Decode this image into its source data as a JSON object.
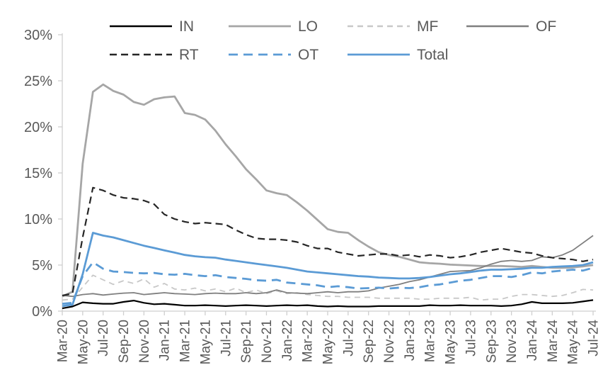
{
  "chart_data": {
    "type": "line",
    "title": "",
    "xlabel": "",
    "ylabel": "",
    "grid": false,
    "legend_position": "top",
    "ylim": [
      0,
      30
    ],
    "y_tick_labels": [
      "0%",
      "5%",
      "10%",
      "15%",
      "20%",
      "25%",
      "30%"
    ],
    "x_tick_labels": [
      "Mar-20",
      "May-20",
      "Jul-20",
      "Sep-20",
      "Nov-20",
      "Jan-21",
      "Mar-21",
      "May-21",
      "Jul-21",
      "Sep-21",
      "Nov-21",
      "Jan-22",
      "Mar-22",
      "May-22",
      "Jul-22",
      "Sep-22",
      "Nov-22",
      "Jan-23",
      "Mar-23",
      "May-23",
      "Jul-23",
      "Sep-23",
      "Nov-23",
      "Jan-24",
      "Mar-24",
      "May-24",
      "Jul-24"
    ],
    "x_frequency": "monthly, labeled every 2 months",
    "points_count": 53,
    "legend_rows": [
      [
        "IN",
        "LO",
        "MF",
        "OF"
      ],
      [
        "RT",
        "OT",
        "Total"
      ]
    ],
    "series": [
      {
        "name": "IN",
        "color": "#000000",
        "style": "solid",
        "width": 2.2,
        "dash": "",
        "values": [
          0.3,
          0.5,
          0.95,
          0.85,
          0.8,
          0.8,
          1.0,
          1.15,
          0.9,
          0.75,
          0.8,
          0.7,
          0.6,
          0.6,
          0.65,
          0.6,
          0.55,
          0.6,
          0.65,
          0.6,
          0.55,
          0.6,
          0.65,
          0.6,
          0.65,
          0.55,
          0.5,
          0.55,
          0.5,
          0.5,
          0.5,
          0.55,
          0.55,
          0.55,
          0.55,
          0.55,
          0.65,
          0.6,
          0.6,
          0.65,
          0.6,
          0.6,
          0.6,
          0.55,
          0.6,
          0.75,
          1.0,
          0.85,
          0.85,
          0.85,
          0.9,
          1.05,
          1.2
        ]
      },
      {
        "name": "LO",
        "color": "#a6a6a6",
        "style": "solid",
        "width": 2.8,
        "dash": "",
        "values": [
          1.6,
          2.1,
          16.0,
          23.8,
          24.6,
          23.9,
          23.5,
          22.7,
          22.4,
          23.0,
          23.2,
          23.3,
          21.5,
          21.3,
          20.8,
          19.6,
          18.1,
          16.8,
          15.4,
          14.3,
          13.1,
          12.8,
          12.6,
          11.8,
          10.9,
          9.9,
          8.9,
          8.6,
          8.5,
          7.7,
          7.0,
          6.4,
          6.1,
          5.9,
          5.6,
          5.3,
          5.2,
          5.15,
          5.05,
          5.0,
          4.95,
          4.9,
          4.9,
          4.9,
          4.85,
          4.8,
          4.9,
          4.8,
          4.7,
          4.7,
          4.75,
          4.85,
          5.0
        ]
      },
      {
        "name": "MF",
        "color": "#c8c8c8",
        "style": "dashed",
        "width": 1.8,
        "dash": "8 6",
        "values": [
          1.2,
          1.3,
          2.6,
          3.9,
          3.4,
          2.9,
          3.3,
          3.0,
          3.5,
          2.6,
          3.0,
          2.4,
          2.3,
          2.5,
          2.2,
          2.4,
          2.1,
          2.5,
          2.0,
          2.3,
          1.9,
          2.2,
          1.9,
          2.0,
          1.8,
          1.7,
          1.6,
          1.6,
          1.5,
          1.5,
          1.5,
          1.4,
          1.4,
          1.4,
          1.4,
          1.3,
          1.3,
          1.4,
          1.4,
          1.4,
          1.5,
          1.2,
          1.3,
          1.3,
          1.6,
          1.8,
          1.8,
          1.7,
          1.6,
          1.7,
          2.0,
          2.35,
          2.3
        ]
      },
      {
        "name": "OF",
        "color": "#7f7f7f",
        "style": "solid",
        "width": 1.8,
        "dash": "",
        "values": [
          1.7,
          1.6,
          1.8,
          1.9,
          1.75,
          1.85,
          1.95,
          2.0,
          1.8,
          1.9,
          2.0,
          1.9,
          1.85,
          1.8,
          1.9,
          1.95,
          1.9,
          1.9,
          2.0,
          1.9,
          2.0,
          2.3,
          2.0,
          1.95,
          1.9,
          2.0,
          2.1,
          2.0,
          2.1,
          2.1,
          2.2,
          2.5,
          2.7,
          2.9,
          3.2,
          3.4,
          3.7,
          4.0,
          4.3,
          4.35,
          4.4,
          4.7,
          5.1,
          5.4,
          5.5,
          5.4,
          5.5,
          5.9,
          5.8,
          6.1,
          6.6,
          7.4,
          8.2
        ]
      },
      {
        "name": "RT",
        "color": "#262626",
        "style": "dashed",
        "width": 2.2,
        "dash": "10 6",
        "values": [
          1.7,
          1.9,
          8.0,
          13.4,
          13.1,
          12.6,
          12.3,
          12.2,
          12.0,
          11.6,
          10.5,
          10.0,
          9.7,
          9.5,
          9.6,
          9.5,
          9.4,
          8.8,
          8.3,
          7.9,
          7.8,
          7.8,
          7.7,
          7.5,
          7.1,
          6.8,
          6.8,
          6.4,
          6.2,
          6.0,
          6.1,
          6.2,
          6.2,
          6.0,
          6.1,
          5.9,
          6.1,
          6.0,
          5.8,
          5.9,
          6.1,
          6.4,
          6.6,
          6.8,
          6.6,
          6.4,
          6.3,
          6.0,
          5.8,
          5.7,
          5.6,
          5.4,
          5.6
        ]
      },
      {
        "name": "OT",
        "color": "#5b9bd5",
        "style": "dashed",
        "width": 2.8,
        "dash": "13 8",
        "values": [
          0.8,
          0.9,
          3.8,
          5.3,
          4.6,
          4.3,
          4.25,
          4.15,
          4.1,
          4.15,
          4.0,
          3.95,
          4.05,
          3.9,
          3.8,
          3.9,
          3.7,
          3.6,
          3.5,
          3.35,
          3.3,
          3.4,
          3.1,
          3.0,
          2.9,
          2.8,
          2.6,
          2.7,
          2.6,
          2.45,
          2.5,
          2.55,
          2.45,
          2.55,
          2.5,
          2.6,
          2.8,
          2.9,
          3.1,
          3.3,
          3.4,
          3.6,
          3.8,
          3.8,
          3.7,
          3.9,
          4.2,
          4.1,
          4.3,
          4.4,
          4.5,
          4.4,
          4.7
        ]
      },
      {
        "name": "Total",
        "color": "#5b9bd5",
        "style": "solid",
        "width": 2.8,
        "dash": "",
        "values": [
          0.55,
          0.7,
          4.0,
          8.5,
          8.2,
          8.0,
          7.7,
          7.4,
          7.1,
          6.85,
          6.6,
          6.35,
          6.1,
          5.95,
          5.85,
          5.8,
          5.6,
          5.45,
          5.3,
          5.15,
          5.0,
          4.85,
          4.7,
          4.5,
          4.3,
          4.2,
          4.1,
          4.0,
          3.9,
          3.8,
          3.75,
          3.65,
          3.6,
          3.55,
          3.55,
          3.6,
          3.7,
          3.85,
          4.0,
          4.1,
          4.25,
          4.4,
          4.5,
          4.5,
          4.55,
          4.6,
          4.7,
          4.7,
          4.8,
          4.85,
          4.9,
          5.0,
          5.3
        ]
      }
    ]
  },
  "style": {
    "axis_color": "#cfcfcf",
    "label_color": "#595959",
    "background": "#ffffff"
  }
}
